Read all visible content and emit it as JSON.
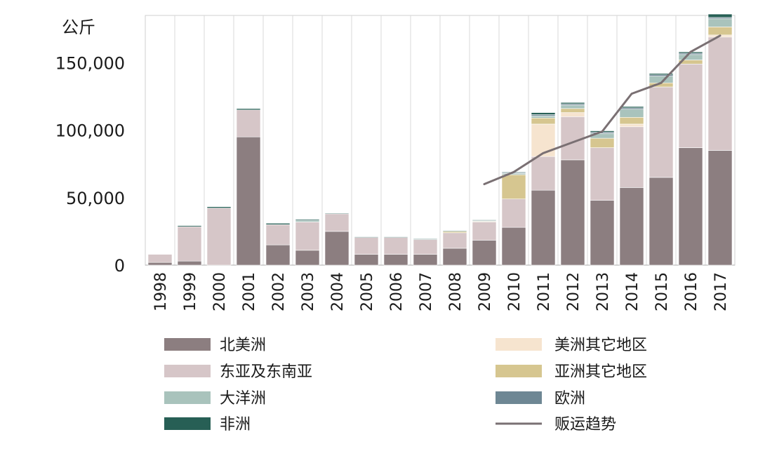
{
  "chart_data": {
    "type": "bar",
    "stacked": true,
    "ylabel": "公斤",
    "ylim": [
      0,
      185000
    ],
    "yticks": [
      {
        "value": 0,
        "label": "0"
      },
      {
        "value": 50000,
        "label": "50,000"
      },
      {
        "value": 100000,
        "label": "100,000"
      },
      {
        "value": 150000,
        "label": "150,000"
      }
    ],
    "grid": "vertical",
    "categories": [
      "1998",
      "1999",
      "2000",
      "2001",
      "2002",
      "2003",
      "2004",
      "2005",
      "2006",
      "2007",
      "2008",
      "2009",
      "2010",
      "2011",
      "2012",
      "2013",
      "2014",
      "2015",
      "2016",
      "2017"
    ],
    "series": [
      {
        "name": "北美洲",
        "color": "#8c7e80",
        "values": [
          2000,
          3000,
          0,
          95000,
          15000,
          11000,
          25000,
          8000,
          8000,
          8000,
          12500,
          18500,
          28000,
          55500,
          78000,
          48000,
          57500,
          65000,
          87000,
          85000
        ]
      },
      {
        "name": "东亚及东南亚",
        "color": "#d6c6c8",
        "values": [
          6000,
          25500,
          42300,
          20000,
          15000,
          21000,
          13000,
          12500,
          12500,
          11000,
          11500,
          13500,
          21000,
          25000,
          32000,
          39000,
          45000,
          67000,
          62000,
          84000
        ]
      },
      {
        "name": "美洲其它地区",
        "color": "#f6e4cf",
        "values": [
          0,
          0,
          0,
          0,
          0,
          0,
          0,
          0,
          0,
          0,
          0,
          0,
          0,
          24000,
          3000,
          0,
          2000,
          0,
          0,
          1500
        ]
      },
      {
        "name": "亚洲其它地区",
        "color": "#d6c690",
        "values": [
          0,
          0,
          0,
          0,
          0,
          0,
          0,
          0,
          0,
          0,
          1000,
          500,
          18000,
          4500,
          3000,
          7000,
          5000,
          3000,
          3000,
          6000
        ]
      },
      {
        "name": "大洋洲",
        "color": "#a9c3bc",
        "values": [
          0,
          0,
          0,
          0,
          0,
          1000,
          0,
          0,
          0,
          0,
          0,
          500,
          1000,
          1500,
          2500,
          3500,
          6000,
          5000,
          4000,
          6000
        ]
      },
      {
        "name": "欧洲",
        "color": "#6e8794",
        "values": [
          0,
          0,
          0,
          0,
          0,
          0,
          0,
          0,
          0,
          0,
          0,
          0,
          500,
          1000,
          1000,
          1000,
          1000,
          1000,
          1000,
          1000
        ]
      },
      {
        "name": "非洲",
        "color": "#275f55",
        "values": [
          0,
          800,
          1000,
          1000,
          1000,
          800,
          500,
          500,
          500,
          500,
          500,
          500,
          500,
          1500,
          1000,
          1000,
          1000,
          1000,
          1000,
          2500
        ]
      }
    ],
    "trend": {
      "name": "贩运趋势",
      "color": "#7a7073",
      "x": [
        "2009",
        "2010",
        "2011",
        "2012",
        "2013",
        "2014",
        "2015",
        "2016",
        "2017"
      ],
      "values": [
        60000,
        69000,
        83000,
        91000,
        99000,
        127000,
        135000,
        158000,
        170000
      ]
    },
    "legend": {
      "left": [
        "北美洲",
        "东亚及东南亚",
        "大洋洲",
        "非洲"
      ],
      "right": [
        "美洲其它地区",
        "亚洲其它地区",
        "欧洲",
        "贩运趋势"
      ]
    }
  }
}
